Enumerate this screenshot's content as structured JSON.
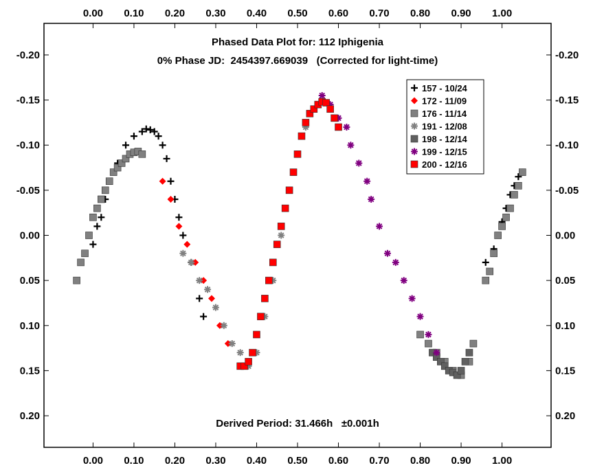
{
  "chart_data": {
    "type": "scatter",
    "title": "Phased Data Plot for: 112 Iphigenia",
    "subtitle": "0% Phase JD:  2454397.669039   (Corrected for light-time)",
    "annotation": "Derived Period: 31.466h   ±0.001h",
    "xlim": [
      -0.12,
      1.12
    ],
    "ylim": [
      -0.235,
      0.235
    ],
    "y_inverted": true,
    "x_ticks": [
      "0.00",
      "0.10",
      "0.20",
      "0.30",
      "0.40",
      "0.50",
      "0.60",
      "0.70",
      "0.80",
      "0.90",
      "1.00"
    ],
    "x_tick_values": [
      0.0,
      0.1,
      0.2,
      0.3,
      0.4,
      0.5,
      0.6,
      0.7,
      0.8,
      0.9,
      1.0
    ],
    "y_ticks": [
      "-0.20",
      "-0.15",
      "-0.10",
      "-0.05",
      "0.00",
      "0.05",
      "0.10",
      "0.15",
      "0.20"
    ],
    "y_tick_values": [
      -0.2,
      -0.15,
      -0.1,
      -0.05,
      0.0,
      0.05,
      0.1,
      0.15,
      0.2
    ],
    "legend_position": "top-right",
    "series": [
      {
        "name": "157 - 10/24",
        "marker": "plus",
        "color": "#000000",
        "x": [
          0.0,
          0.01,
          0.02,
          0.03,
          0.04,
          0.06,
          0.08,
          0.1,
          0.12,
          0.13,
          0.14,
          0.15,
          0.16,
          0.17,
          0.18,
          0.19,
          0.2,
          0.21,
          0.22,
          0.24,
          0.26,
          0.27,
          0.96,
          0.98,
          0.99,
          1.0,
          1.01,
          1.02,
          1.03,
          1.04,
          1.05
        ],
        "y": [
          0.01,
          -0.01,
          -0.02,
          -0.04,
          -0.06,
          -0.08,
          -0.1,
          -0.11,
          -0.115,
          -0.118,
          -0.117,
          -0.115,
          -0.11,
          -0.1,
          -0.085,
          -0.06,
          -0.04,
          -0.02,
          0.0,
          0.03,
          0.07,
          0.09,
          0.03,
          0.015,
          0.0,
          -0.015,
          -0.03,
          -0.045,
          -0.055,
          -0.065,
          -0.07
        ]
      },
      {
        "name": "172 - 11/09",
        "marker": "diamond",
        "color": "#ff0000",
        "x": [
          0.17,
          0.19,
          0.21,
          0.23,
          0.25,
          0.27,
          0.29,
          0.31,
          0.33
        ],
        "y": [
          -0.06,
          -0.04,
          -0.01,
          0.01,
          0.03,
          0.05,
          0.07,
          0.1,
          0.12
        ]
      },
      {
        "name": "176 - 11/14",
        "marker": "square",
        "color": "#808080",
        "x": [
          -0.04,
          -0.03,
          -0.02,
          -0.01,
          0.0,
          0.01,
          0.02,
          0.03,
          0.04,
          0.05,
          0.06,
          0.07,
          0.08,
          0.09,
          0.1,
          0.11,
          0.12,
          0.96,
          0.97,
          0.98,
          0.99,
          1.0,
          1.01,
          1.02,
          1.03,
          1.04,
          1.05,
          0.8,
          0.82,
          0.84,
          0.86,
          0.88,
          0.9,
          0.92,
          0.93
        ],
        "y": [
          0.05,
          0.03,
          0.02,
          0.0,
          -0.02,
          -0.03,
          -0.04,
          -0.05,
          -0.06,
          -0.07,
          -0.075,
          -0.08,
          -0.085,
          -0.09,
          -0.092,
          -0.093,
          -0.09,
          0.05,
          0.04,
          0.02,
          0.0,
          -0.01,
          -0.02,
          -0.03,
          -0.045,
          -0.055,
          -0.07,
          0.11,
          0.12,
          0.13,
          0.14,
          0.15,
          0.155,
          0.14,
          0.12
        ]
      },
      {
        "name": "191 - 12/08",
        "marker": "asterisk",
        "color": "#808080",
        "x": [
          0.22,
          0.24,
          0.26,
          0.28,
          0.3,
          0.32,
          0.34,
          0.36,
          0.38,
          0.4,
          0.42,
          0.44,
          0.46,
          0.48,
          0.5,
          0.52,
          0.54,
          0.56
        ],
        "y": [
          0.02,
          0.03,
          0.05,
          0.06,
          0.08,
          0.1,
          0.12,
          0.13,
          0.145,
          0.13,
          0.09,
          0.05,
          0.0,
          -0.05,
          -0.09,
          -0.12,
          -0.14,
          -0.15
        ]
      },
      {
        "name": "198 - 12/14",
        "marker": "square",
        "color": "#606060",
        "x": [
          0.83,
          0.84,
          0.85,
          0.86,
          0.87,
          0.88,
          0.89,
          0.9,
          0.91,
          0.92
        ],
        "y": [
          0.13,
          0.135,
          0.14,
          0.145,
          0.15,
          0.152,
          0.155,
          0.15,
          0.14,
          0.13
        ]
      },
      {
        "name": "199 - 12/15",
        "marker": "asterisk",
        "color": "#800080",
        "x": [
          0.56,
          0.58,
          0.6,
          0.62,
          0.63,
          0.65,
          0.67,
          0.68,
          0.7,
          0.72,
          0.74,
          0.76,
          0.78,
          0.8,
          0.82,
          0.84
        ],
        "y": [
          -0.155,
          -0.145,
          -0.13,
          -0.12,
          -0.1,
          -0.08,
          -0.06,
          -0.04,
          -0.01,
          0.02,
          0.03,
          0.05,
          0.07,
          0.09,
          0.11,
          0.13
        ]
      },
      {
        "name": "200 - 12/16",
        "marker": "square",
        "color": "#ff0000",
        "x": [
          0.36,
          0.37,
          0.38,
          0.39,
          0.4,
          0.41,
          0.42,
          0.43,
          0.44,
          0.45,
          0.46,
          0.47,
          0.48,
          0.49,
          0.5,
          0.51,
          0.52,
          0.53,
          0.54,
          0.55,
          0.56,
          0.57,
          0.58,
          0.59,
          0.6
        ],
        "y": [
          0.145,
          0.145,
          0.14,
          0.13,
          0.11,
          0.09,
          0.07,
          0.05,
          0.03,
          0.01,
          -0.01,
          -0.03,
          -0.05,
          -0.07,
          -0.09,
          -0.11,
          -0.125,
          -0.135,
          -0.14,
          -0.145,
          -0.148,
          -0.147,
          -0.14,
          -0.13,
          -0.12
        ]
      }
    ]
  }
}
